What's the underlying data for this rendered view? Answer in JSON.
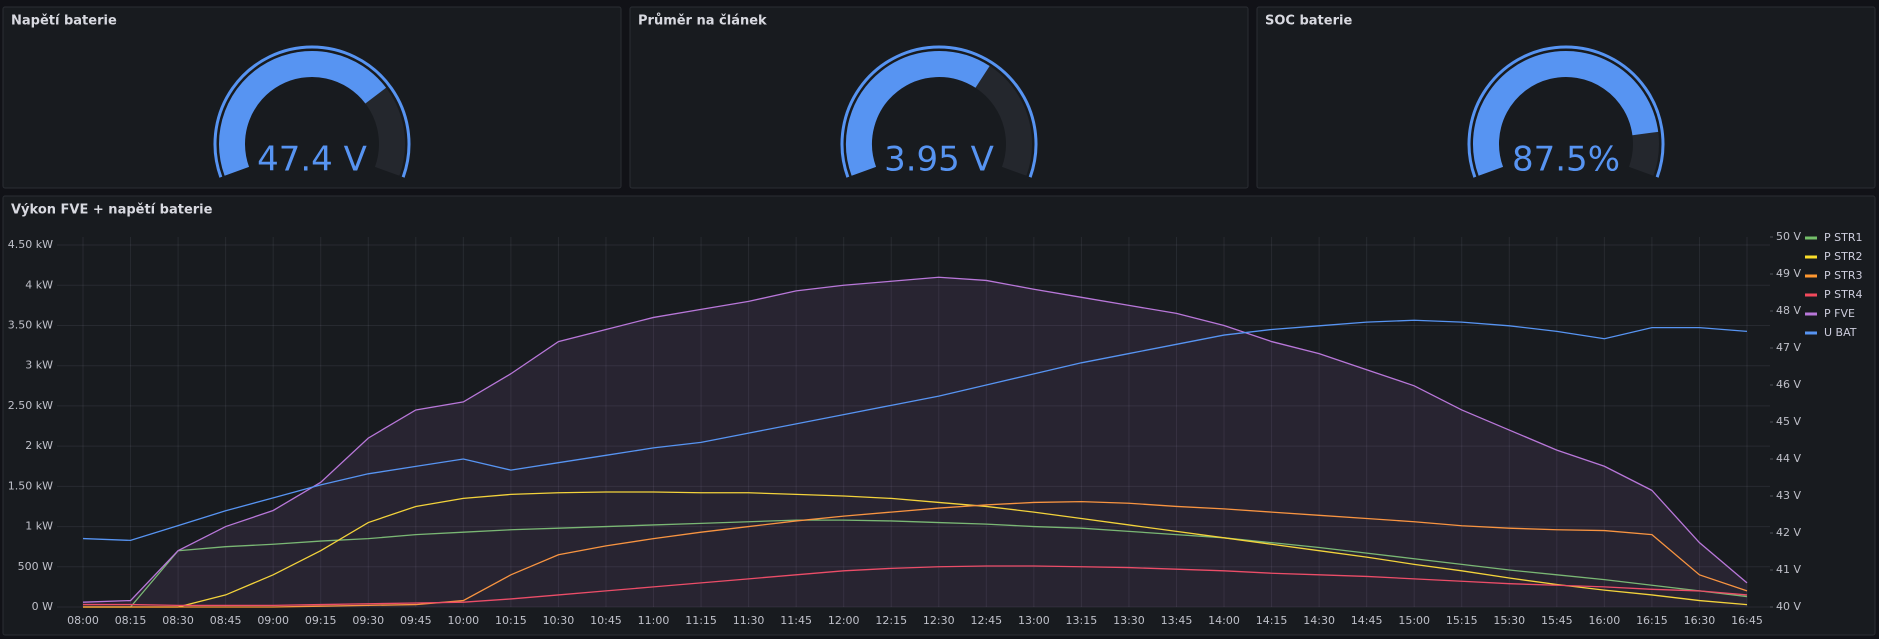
{
  "chart_data": [
    {
      "type": "gauge",
      "title": "Napětí baterie",
      "values": [
        47.4
      ],
      "value_labels": [
        "47.4 V"
      ],
      "ylim": [
        40,
        50
      ],
      "color": "#5794f2"
    },
    {
      "type": "gauge",
      "title": "Průměr na článek",
      "values": [
        3.95
      ],
      "value_labels": [
        "3.95 V"
      ],
      "ylim": [
        3.3,
        4.3
      ],
      "color": "#5794f2"
    },
    {
      "type": "gauge",
      "title": "SOC baterie",
      "values": [
        87.5
      ],
      "value_labels": [
        "87.5%"
      ],
      "ylim": [
        0,
        100
      ],
      "color": "#5794f2"
    },
    {
      "type": "line",
      "title": "Výkon FVE + napětí baterie",
      "categories": [
        "08:00",
        "08:15",
        "08:30",
        "08:45",
        "09:00",
        "09:15",
        "09:30",
        "09:45",
        "10:00",
        "10:15",
        "10:30",
        "10:45",
        "11:00",
        "11:15",
        "11:30",
        "11:45",
        "12:00",
        "12:15",
        "12:30",
        "12:45",
        "13:00",
        "13:15",
        "13:30",
        "13:45",
        "14:00",
        "14:15",
        "14:30",
        "14:45",
        "15:00",
        "15:15",
        "15:30",
        "15:45",
        "16:00",
        "16:15",
        "16:30",
        "16:45"
      ],
      "series": [
        {
          "name": "P STR1",
          "color": "#73bf69",
          "values": [
            0,
            0,
            700,
            750,
            780,
            820,
            850,
            900,
            930,
            960,
            980,
            1000,
            1020,
            1040,
            1060,
            1080,
            1080,
            1070,
            1050,
            1030,
            1000,
            980,
            940,
            900,
            860,
            800,
            740,
            670,
            600,
            530,
            460,
            400,
            340,
            270,
            200,
            130
          ]
        },
        {
          "name": "P STR2",
          "color": "#fade2a",
          "values": [
            0,
            0,
            0,
            150,
            400,
            700,
            1050,
            1250,
            1350,
            1400,
            1420,
            1430,
            1430,
            1420,
            1420,
            1400,
            1380,
            1350,
            1300,
            1250,
            1180,
            1100,
            1020,
            940,
            860,
            780,
            700,
            620,
            530,
            450,
            360,
            280,
            210,
            150,
            80,
            30
          ]
        },
        {
          "name": "P STR3",
          "color": "#ff9830",
          "values": [
            0,
            0,
            0,
            0,
            0,
            10,
            20,
            30,
            80,
            400,
            650,
            760,
            850,
            930,
            1000,
            1070,
            1130,
            1180,
            1230,
            1270,
            1300,
            1310,
            1290,
            1250,
            1220,
            1180,
            1140,
            1100,
            1060,
            1010,
            980,
            960,
            950,
            900,
            400,
            200
          ]
        },
        {
          "name": "P STR4",
          "color": "#f2495c",
          "values": [
            30,
            30,
            20,
            20,
            20,
            30,
            40,
            50,
            60,
            100,
            150,
            200,
            250,
            300,
            350,
            400,
            450,
            480,
            500,
            510,
            510,
            500,
            490,
            470,
            450,
            420,
            400,
            380,
            350,
            320,
            290,
            270,
            250,
            220,
            200,
            150
          ]
        },
        {
          "name": "P FVE",
          "color": "#b877d9",
          "fill": true,
          "values": [
            60,
            80,
            700,
            1000,
            1200,
            1550,
            2100,
            2450,
            2550,
            2900,
            3300,
            3450,
            3600,
            3700,
            3800,
            3930,
            4000,
            4050,
            4100,
            4060,
            3950,
            3850,
            3750,
            3650,
            3500,
            3300,
            3150,
            2950,
            2750,
            2450,
            2200,
            1950,
            1750,
            1450,
            800,
            300
          ]
        },
        {
          "name": "U BAT",
          "color": "#5794f2",
          "axis": "y2",
          "values": [
            41.85,
            41.8,
            42.2,
            42.6,
            42.95,
            43.3,
            43.6,
            43.8,
            44.0,
            43.7,
            43.9,
            44.1,
            44.3,
            44.45,
            44.7,
            44.95,
            45.2,
            45.45,
            45.7,
            46.0,
            46.3,
            46.6,
            46.85,
            47.1,
            47.35,
            47.5,
            47.6,
            47.7,
            47.75,
            47.7,
            47.6,
            47.45,
            47.25,
            47.55,
            47.55,
            47.45
          ]
        }
      ],
      "ylim": [
        0,
        4600
      ],
      "yticks": [
        {
          "value": 0,
          "label": "0 W"
        },
        {
          "value": 500,
          "label": "500 W"
        },
        {
          "value": 1000,
          "label": "1 kW"
        },
        {
          "value": 1500,
          "label": "1.50 kW"
        },
        {
          "value": 2000,
          "label": "2 kW"
        },
        {
          "value": 2500,
          "label": "2.50 kW"
        },
        {
          "value": 3000,
          "label": "3 kW"
        },
        {
          "value": 3500,
          "label": "3.50 kW"
        },
        {
          "value": 4000,
          "label": "4 kW"
        },
        {
          "value": 4500,
          "label": "4.50 kW"
        }
      ],
      "y2lim": [
        40,
        50
      ],
      "y2ticks": [
        {
          "value": 40,
          "label": "40 V"
        },
        {
          "value": 41,
          "label": "41 V"
        },
        {
          "value": 42,
          "label": "42 V"
        },
        {
          "value": 43,
          "label": "43 V"
        },
        {
          "value": 44,
          "label": "44 V"
        },
        {
          "value": 45,
          "label": "45 V"
        },
        {
          "value": 46,
          "label": "46 V"
        },
        {
          "value": 47,
          "label": "47 V"
        },
        {
          "value": 48,
          "label": "48 V"
        },
        {
          "value": 49,
          "label": "49 V"
        },
        {
          "value": 50,
          "label": "50 V"
        }
      ],
      "grid": true,
      "legend": "right"
    }
  ]
}
